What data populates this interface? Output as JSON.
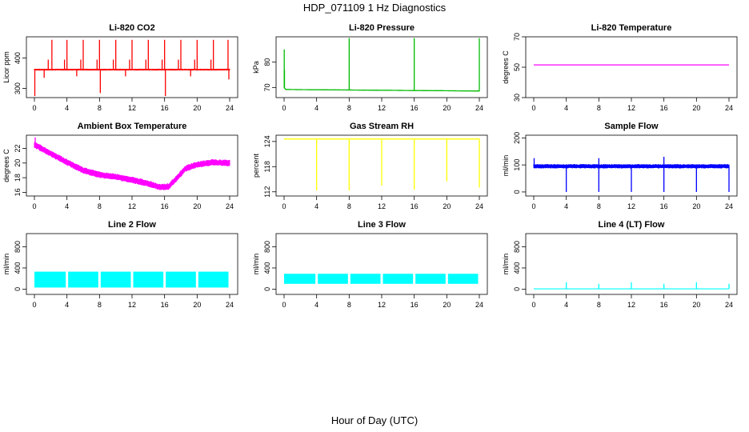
{
  "figure": {
    "title": "HDP_071109  1 Hz Diagnostics",
    "xlabel": "Hour of Day (UTC)"
  },
  "chart_data": [
    {
      "type": "line",
      "title": "Li-820 CO2",
      "ylabel": "Licor ppm",
      "color": "#ff0000",
      "xlim": [
        0,
        24
      ],
      "xticks": [
        0,
        4,
        8,
        12,
        16,
        20,
        24
      ],
      "ylim": [
        270,
        470
      ],
      "yticks": [
        300,
        400
      ],
      "baseline": 362,
      "noise": 3,
      "spikes": [
        {
          "x": 0.05,
          "y": 275
        },
        {
          "x": 2.15,
          "y": 460
        },
        {
          "x": 4.0,
          "y": 460
        },
        {
          "x": 6.0,
          "y": 460
        },
        {
          "x": 8.0,
          "y": 460
        },
        {
          "x": 8.1,
          "y": 285
        },
        {
          "x": 10.0,
          "y": 460
        },
        {
          "x": 12.0,
          "y": 460
        },
        {
          "x": 14.0,
          "y": 460
        },
        {
          "x": 16.0,
          "y": 460
        },
        {
          "x": 16.1,
          "y": 275
        },
        {
          "x": 18.0,
          "y": 460
        },
        {
          "x": 20.0,
          "y": 460
        },
        {
          "x": 22.0,
          "y": 460
        },
        {
          "x": 23.8,
          "y": 460
        },
        {
          "x": 1.7,
          "y": 395
        },
        {
          "x": 3.7,
          "y": 395
        },
        {
          "x": 5.7,
          "y": 395
        },
        {
          "x": 7.7,
          "y": 395
        },
        {
          "x": 9.7,
          "y": 395
        },
        {
          "x": 11.7,
          "y": 395
        },
        {
          "x": 13.7,
          "y": 395
        },
        {
          "x": 15.7,
          "y": 395
        },
        {
          "x": 17.7,
          "y": 395
        },
        {
          "x": 19.7,
          "y": 395
        },
        {
          "x": 21.7,
          "y": 395
        },
        {
          "x": 1.2,
          "y": 335
        },
        {
          "x": 5.2,
          "y": 340
        },
        {
          "x": 11.2,
          "y": 340
        },
        {
          "x": 19.2,
          "y": 340
        },
        {
          "x": 23.9,
          "y": 330
        }
      ]
    },
    {
      "type": "line",
      "title": "Li-820 Pressure",
      "ylabel": "kPa",
      "color": "#00bb00",
      "xlim": [
        0,
        24
      ],
      "xticks": [
        0,
        4,
        8,
        12,
        16,
        20,
        24
      ],
      "ylim": [
        66,
        90
      ],
      "yticks": [
        70,
        80
      ],
      "series": [
        {
          "x": [
            0,
            0.2,
            8,
            12,
            16,
            20,
            24
          ],
          "y": [
            70,
            69.2,
            69.0,
            68.9,
            68.8,
            68.7,
            68.6
          ]
        }
      ],
      "noise": 0.2,
      "spikes": [
        {
          "x": 0.02,
          "y": 85
        },
        {
          "x": 0.05,
          "y": 77
        },
        {
          "x": 8.0,
          "y": 89.5
        },
        {
          "x": 16.0,
          "y": 89.5
        },
        {
          "x": 24.0,
          "y": 89.5
        }
      ]
    },
    {
      "type": "line",
      "title": "Li-820 Temperature",
      "ylabel": "degrees C",
      "color": "#ff00ff",
      "xlim": [
        0,
        24
      ],
      "xticks": [
        0,
        4,
        8,
        12,
        16,
        20,
        24
      ],
      "ylim": [
        30,
        70
      ],
      "yticks": [
        30,
        50,
        70
      ],
      "series": [
        {
          "x": [
            0,
            24
          ],
          "y": [
            51.5,
            51.5
          ]
        }
      ],
      "noise": 0,
      "spikes": []
    },
    {
      "type": "line",
      "title": "Ambient Box Temperature",
      "ylabel": "degrees C",
      "color": "#ff00ff",
      "xlim": [
        0,
        24
      ],
      "xticks": [
        0,
        4,
        8,
        12,
        16,
        20,
        24
      ],
      "ylim": [
        15.5,
        23.8
      ],
      "yticks": [
        16,
        18,
        20,
        22
      ],
      "series": [
        {
          "x": [
            0,
            2,
            4,
            6,
            8,
            10,
            12,
            14,
            15.5,
            16.5,
            17.5,
            18.5,
            20,
            22,
            24
          ],
          "y": [
            22.5,
            21.3,
            20.1,
            19.0,
            18.4,
            18.1,
            17.7,
            17.2,
            16.7,
            16.8,
            17.9,
            19.2,
            19.8,
            20.1,
            20.0
          ]
        }
      ],
      "noise": 0.45,
      "spikes": [
        {
          "x": 0.1,
          "y": 23.5
        }
      ]
    },
    {
      "type": "line",
      "title": "Gas Stream RH",
      "ylabel": "percent",
      "color": "#ffff00",
      "xlim": [
        0,
        24
      ],
      "xticks": [
        0,
        4,
        8,
        12,
        16,
        20,
        24
      ],
      "ylim": [
        111,
        125.5
      ],
      "yticks": [
        112,
        118,
        124
      ],
      "series": [
        {
          "x": [
            0,
            24
          ],
          "y": [
            124.6,
            124.6
          ]
        }
      ],
      "noise": 0.1,
      "dips": [
        {
          "x": 4.0,
          "y": 112.3
        },
        {
          "x": 8.0,
          "y": 112.3
        },
        {
          "x": 12.0,
          "y": 113.5
        },
        {
          "x": 16.0,
          "y": 112.5
        },
        {
          "x": 20.0,
          "y": 114.5
        },
        {
          "x": 24.0,
          "y": 113.0
        }
      ]
    },
    {
      "type": "line",
      "title": "Sample Flow",
      "ylabel": "ml/min",
      "color": "#0000ff",
      "xlim": [
        0,
        24
      ],
      "xticks": [
        0,
        4,
        8,
        12,
        16,
        20,
        24
      ],
      "ylim": [
        -15,
        210
      ],
      "yticks": [
        0,
        100,
        200
      ],
      "series": [
        {
          "x": [
            0,
            24
          ],
          "y": [
            95,
            95
          ]
        }
      ],
      "noise": 8,
      "spikes": [
        {
          "x": 0.05,
          "y": 125
        },
        {
          "x": 8.0,
          "y": 125
        },
        {
          "x": 16.0,
          "y": 130
        }
      ],
      "dips": [
        {
          "x": 4.0,
          "y": 0
        },
        {
          "x": 8.0,
          "y": 0
        },
        {
          "x": 12.0,
          "y": 0
        },
        {
          "x": 16.0,
          "y": 0
        },
        {
          "x": 20.0,
          "y": 0
        },
        {
          "x": 24.0,
          "y": 0
        }
      ]
    },
    {
      "type": "area",
      "title": "Line 2 Flow",
      "ylabel": "ml/min",
      "color": "#00ffff",
      "xlim": [
        0,
        24
      ],
      "xticks": [
        0,
        4,
        8,
        12,
        16,
        20,
        24
      ],
      "ylim": [
        -100,
        1050
      ],
      "yticks": [
        0,
        400,
        800
      ],
      "band": [
        30,
        330
      ],
      "gaps": [
        4,
        8,
        12,
        16,
        20
      ]
    },
    {
      "type": "area",
      "title": "Line 3 Flow",
      "ylabel": "ml/min",
      "color": "#00ffff",
      "xlim": [
        0,
        24
      ],
      "xticks": [
        0,
        4,
        8,
        12,
        16,
        20,
        24
      ],
      "ylim": [
        -100,
        1050
      ],
      "yticks": [
        0,
        400,
        800
      ],
      "band": [
        100,
        290
      ],
      "gaps": [
        4,
        8,
        12,
        16,
        20
      ]
    },
    {
      "type": "line",
      "title": "Line 4 (LT) Flow",
      "ylabel": "ml/min",
      "color": "#00ffff",
      "xlim": [
        0,
        24
      ],
      "xticks": [
        0,
        4,
        8,
        12,
        16,
        20,
        24
      ],
      "ylim": [
        -100,
        1050
      ],
      "yticks": [
        0,
        400,
        800
      ],
      "series": [
        {
          "x": [
            0,
            24
          ],
          "y": [
            5,
            5
          ]
        }
      ],
      "noise": 0,
      "spikes": [
        {
          "x": 4.0,
          "y": 130
        },
        {
          "x": 8.0,
          "y": 100
        },
        {
          "x": 12.0,
          "y": 130
        },
        {
          "x": 16.0,
          "y": 100
        },
        {
          "x": 20.0,
          "y": 130
        },
        {
          "x": 24.0,
          "y": 100
        }
      ]
    }
  ]
}
